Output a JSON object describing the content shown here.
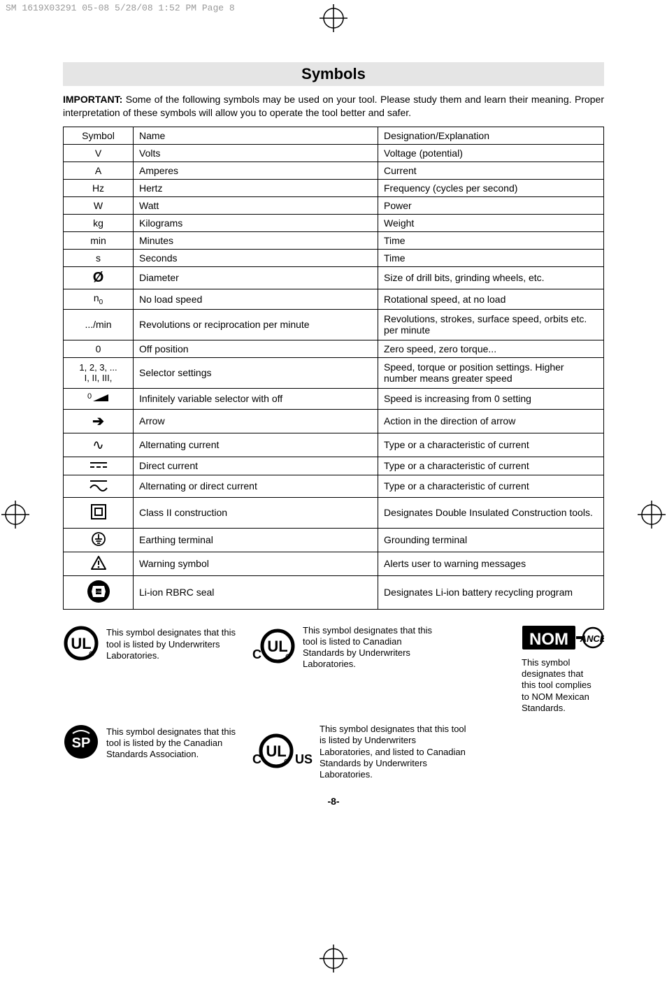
{
  "meta_line": "SM 1619X03291 05-08  5/28/08  1:52 PM  Page 8",
  "title": "Symbols",
  "intro_bold": "IMPORTANT:",
  "intro_rest": " Some of the following symbols may be used on your tool.  Please study them and learn their meaning.  Proper interpretation of these symbols will allow you to operate the tool better and safer.",
  "headers": {
    "c1": "Symbol",
    "c2": "Name",
    "c3": "Designation/Explanation"
  },
  "rows": [
    {
      "sym": "V",
      "name": "Volts",
      "desc": "Voltage (potential)"
    },
    {
      "sym": "A",
      "name": "Amperes",
      "desc": "Current"
    },
    {
      "sym": "Hz",
      "name": "Hertz",
      "desc": "Frequency (cycles per second)"
    },
    {
      "sym": "W",
      "name": "Watt",
      "desc": "Power"
    },
    {
      "sym": "kg",
      "name": "Kilograms",
      "desc": "Weight"
    },
    {
      "sym": "min",
      "name": "Minutes",
      "desc": "Time"
    },
    {
      "sym": "s",
      "name": "Seconds",
      "desc": "Time"
    },
    {
      "sym": "Ø",
      "name": "Diameter",
      "desc": "Size of drill bits, grinding wheels,  etc."
    },
    {
      "sym": "n₀",
      "name": "No load speed",
      "desc": "Rotational speed, at no load"
    },
    {
      "sym": ".../min",
      "name": "Revolutions or reciprocation per minute",
      "desc": "Revolutions, strokes, surface speed, orbits etc. per minute"
    },
    {
      "sym": "0",
      "name": "Off position",
      "desc": "Zero speed, zero torque..."
    },
    {
      "sym": "1, 2, 3, ...\nI, II, III,",
      "name": "Selector settings",
      "desc": "Speed, torque or position settings. Higher number means greater speed"
    },
    {
      "sym": "SVG_RAMP",
      "name": "Infinitely variable selector with off",
      "desc": "Speed is increasing from 0 setting"
    },
    {
      "sym": "→",
      "name": "Arrow",
      "desc": "Action in the direction of arrow"
    },
    {
      "sym": "∿",
      "name": "Alternating current",
      "desc": "Type or a characteristic of current"
    },
    {
      "sym": "⎓",
      "name": "Direct current",
      "desc": "Type or a characteristic of current"
    },
    {
      "sym": "SVG_ACDC",
      "name": "Alternating or direct current",
      "desc": "Type or a characteristic of current"
    },
    {
      "sym": "SVG_CLASS2",
      "name": "Class II  construction",
      "desc": "Designates Double Insulated Construction tools."
    },
    {
      "sym": "⏚",
      "name": "Earthing terminal",
      "desc": "Grounding terminal"
    },
    {
      "sym": "⚠",
      "name": "Warning symbol",
      "desc": "Alerts user to warning messages"
    },
    {
      "sym": "SVG_RBRC",
      "name": "Li-ion RBRC seal",
      "desc": "Designates Li-ion battery recycling program"
    }
  ],
  "logos": {
    "ul": "This symbol designates that this tool is listed by Underwriters Laboratories.",
    "cul": "This symbol designates that this tool is listed to Canadian Standards by Underwriters Laboratories.",
    "csa": "This symbol designates that this tool is listed by the Canadian Standards Association.",
    "culus": "This symbol designates that this tool is listed by Underwriters Laboratories, and listed to Canadian Standards by Underwriters Laboratories.",
    "nom": "This symbol designates that this tool complies to NOM Mexican Standards."
  },
  "pagenum": "-8-"
}
